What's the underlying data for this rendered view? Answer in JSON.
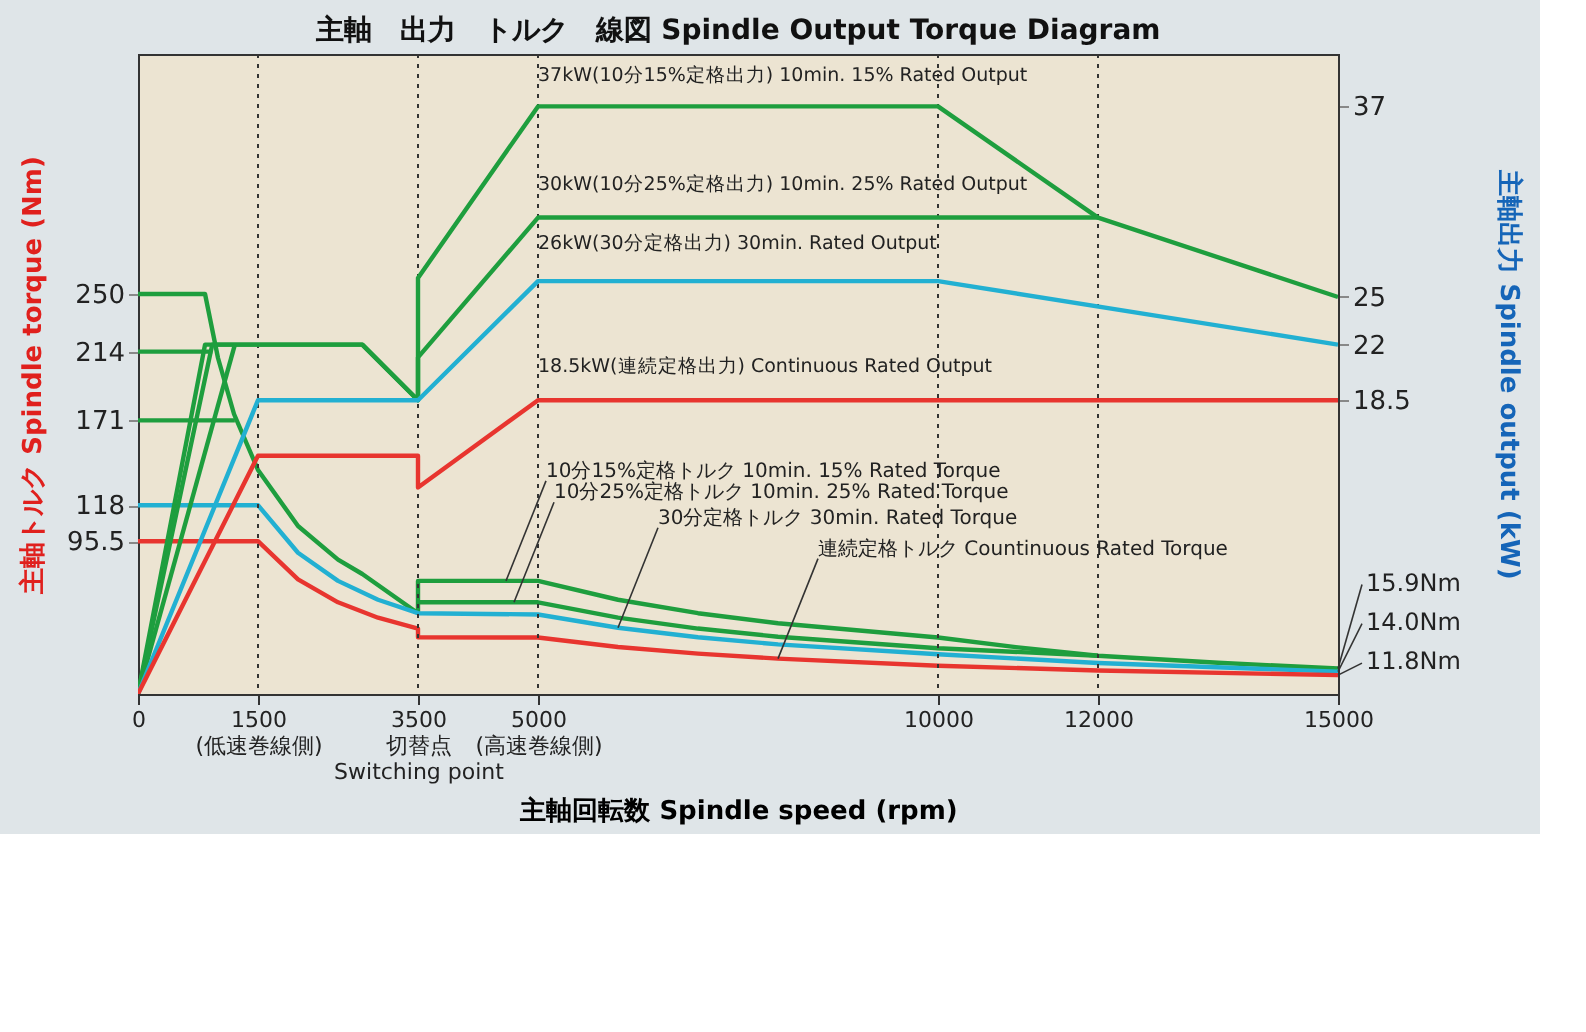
{
  "chart_data": {
    "type": "line",
    "title": "主軸　出力　トルク　線図 Spindle Output Torque Diagram",
    "xlabel": "主軸回転数 Spindle speed (rpm)",
    "ylabel": "主軸トルク Spindle torque (Nm)",
    "y2label": "主軸出力 Spindle output (kW)",
    "xlim": [
      0,
      15000
    ],
    "xticks": [
      0,
      {
        "value": 1500,
        "label": "1500\n(低速巻線側)"
      },
      {
        "value": 3500,
        "label": "3500\n切替点\nSwitching point"
      },
      {
        "value": 5000,
        "label": "5000\n(高速巻線側)"
      },
      10000,
      12000,
      15000
    ],
    "ylim": [
      0,
      400
    ],
    "yticks": [
      95.5,
      118,
      171,
      214,
      250
    ],
    "y2lim": [
      0,
      40.3
    ],
    "y2ticks": [
      18.5,
      22,
      25,
      37
    ],
    "grid": false,
    "legend": false,
    "series": [
      {
        "color": "#1e9e3e",
        "x": [
          0,
          838,
          1000,
          1200,
          1500,
          2000,
          2500,
          2804,
          3500,
          3500,
          5000,
          6000,
          7000,
          8000,
          10000,
          11000,
          12000,
          13500,
          15000
        ],
        "values": [
          250,
          250,
          210,
          175,
          140,
          105,
          84,
          75,
          50.5,
          70.7,
          70.7,
          58.9,
          50.5,
          44.2,
          35.3,
          29.1,
          23.9,
          19.5,
          15.9
        ]
      },
      {
        "color": "#1e9e3e",
        "x": [
          0,
          928
        ],
        "values": [
          214,
          214
        ]
      },
      {
        "color": "#1e9e3e",
        "x": [
          3500,
          5000,
          6000,
          7000,
          8000,
          10000,
          12000
        ],
        "values": [
          57.3,
          57.3,
          47.7,
          40.9,
          35.8,
          28.6,
          23.9
        ]
      },
      {
        "color": "#1e9e3e",
        "x": [
          0,
          1211
        ],
        "values": [
          171,
          171
        ]
      },
      {
        "color": "#22b0d2",
        "x": [
          0,
          1500,
          2000,
          2500,
          3000,
          3500,
          5000,
          6000,
          7000,
          8000,
          10000,
          12000,
          15000
        ],
        "values": [
          118,
          118,
          88.3,
          70.7,
          58.9,
          50.5,
          49.7,
          41.4,
          35.5,
          31.0,
          24.8,
          19.4,
          14.0
        ]
      },
      {
        "color": "#e8352f",
        "x": [
          0,
          1500,
          2000,
          2500,
          3000,
          3500,
          3500,
          5000,
          6000,
          7000,
          8000,
          10000,
          12000,
          15000
        ],
        "values": [
          95.5,
          95.5,
          71.6,
          57.3,
          47.7,
          40.9,
          35.5,
          35.3,
          29.4,
          25.2,
          22.1,
          17.7,
          14.7,
          11.8
        ]
      },
      {
        "color": "#1e9e3e",
        "axis": "y2",
        "x": [
          0,
          838,
          2804,
          3500,
          3500,
          5000,
          10000,
          12000,
          15000
        ],
        "values": [
          0,
          22,
          22,
          18.5,
          26.2,
          37,
          37,
          30,
          25
        ]
      },
      {
        "color": "#1e9e3e",
        "axis": "y2",
        "x": [
          0,
          928,
          2804,
          3500,
          3500,
          5000,
          12000
        ],
        "values": [
          0,
          22,
          22,
          18.5,
          21.2,
          30,
          30
        ]
      },
      {
        "color": "#1e9e3e",
        "axis": "y2",
        "x": [
          0,
          1211
        ],
        "values": [
          0,
          22
        ]
      },
      {
        "color": "#22b0d2",
        "axis": "y2",
        "x": [
          0,
          1500,
          3500,
          5000,
          10000,
          15000
        ],
        "values": [
          0,
          18.5,
          18.5,
          26,
          26,
          22
        ]
      },
      {
        "color": "#e8352f",
        "axis": "y2",
        "x": [
          0,
          1500,
          3500,
          3500,
          5000,
          15000
        ],
        "values": [
          0,
          15,
          15,
          13,
          18.5,
          18.5
        ]
      }
    ],
    "ref_lines": [
      {
        "axis": "x",
        "value": 1500,
        "line_style": "dotted",
        "color": "#333333"
      },
      {
        "axis": "x",
        "value": 3500,
        "line_style": "dotted",
        "color": "#333333"
      },
      {
        "axis": "x",
        "value": 5000,
        "line_style": "dotted",
        "color": "#333333"
      },
      {
        "axis": "x",
        "value": 10000,
        "line_style": "dotted",
        "color": "#333333"
      },
      {
        "axis": "x",
        "value": 12000,
        "line_style": "dotted",
        "color": "#333333"
      }
    ],
    "annotations": [
      {
        "text": "37kW(10分15%定格出力) 10min. 15% Rated Output",
        "x": 5000,
        "y": 378
      },
      {
        "text": "30kW(10分25%定格出力) 10min. 25% Rated Output",
        "x": 5000,
        "y": 310
      },
      {
        "text": "26kW(30分定格出力) 30min. Rated Output",
        "x": 5000,
        "y": 273
      },
      {
        "text": "18.5kW(連続定格出力) Continuous Rated Output",
        "x": 5000,
        "y": 196
      },
      {
        "text": "10分15%定格トルク 10min. 15% Rated Torque",
        "x": 4600,
        "y": 70.7
      },
      {
        "text": "10分25%定格トルク 10min. 25% Rated Torque",
        "x": 4700,
        "y": 57.3
      },
      {
        "text": "30分定格トルク 30min. Rated Torque",
        "x": 6000,
        "y": 41.4
      },
      {
        "text": "連続定格トルク Countinuous Rated Torque",
        "x": 8000,
        "y": 22.1
      },
      {
        "text": "15.9Nm",
        "x": 15000,
        "y": 15.9
      },
      {
        "text": "14.0Nm",
        "x": 15000,
        "y": 14.0
      },
      {
        "text": "11.8Nm",
        "x": 15000,
        "y": 11.8
      }
    ]
  }
}
